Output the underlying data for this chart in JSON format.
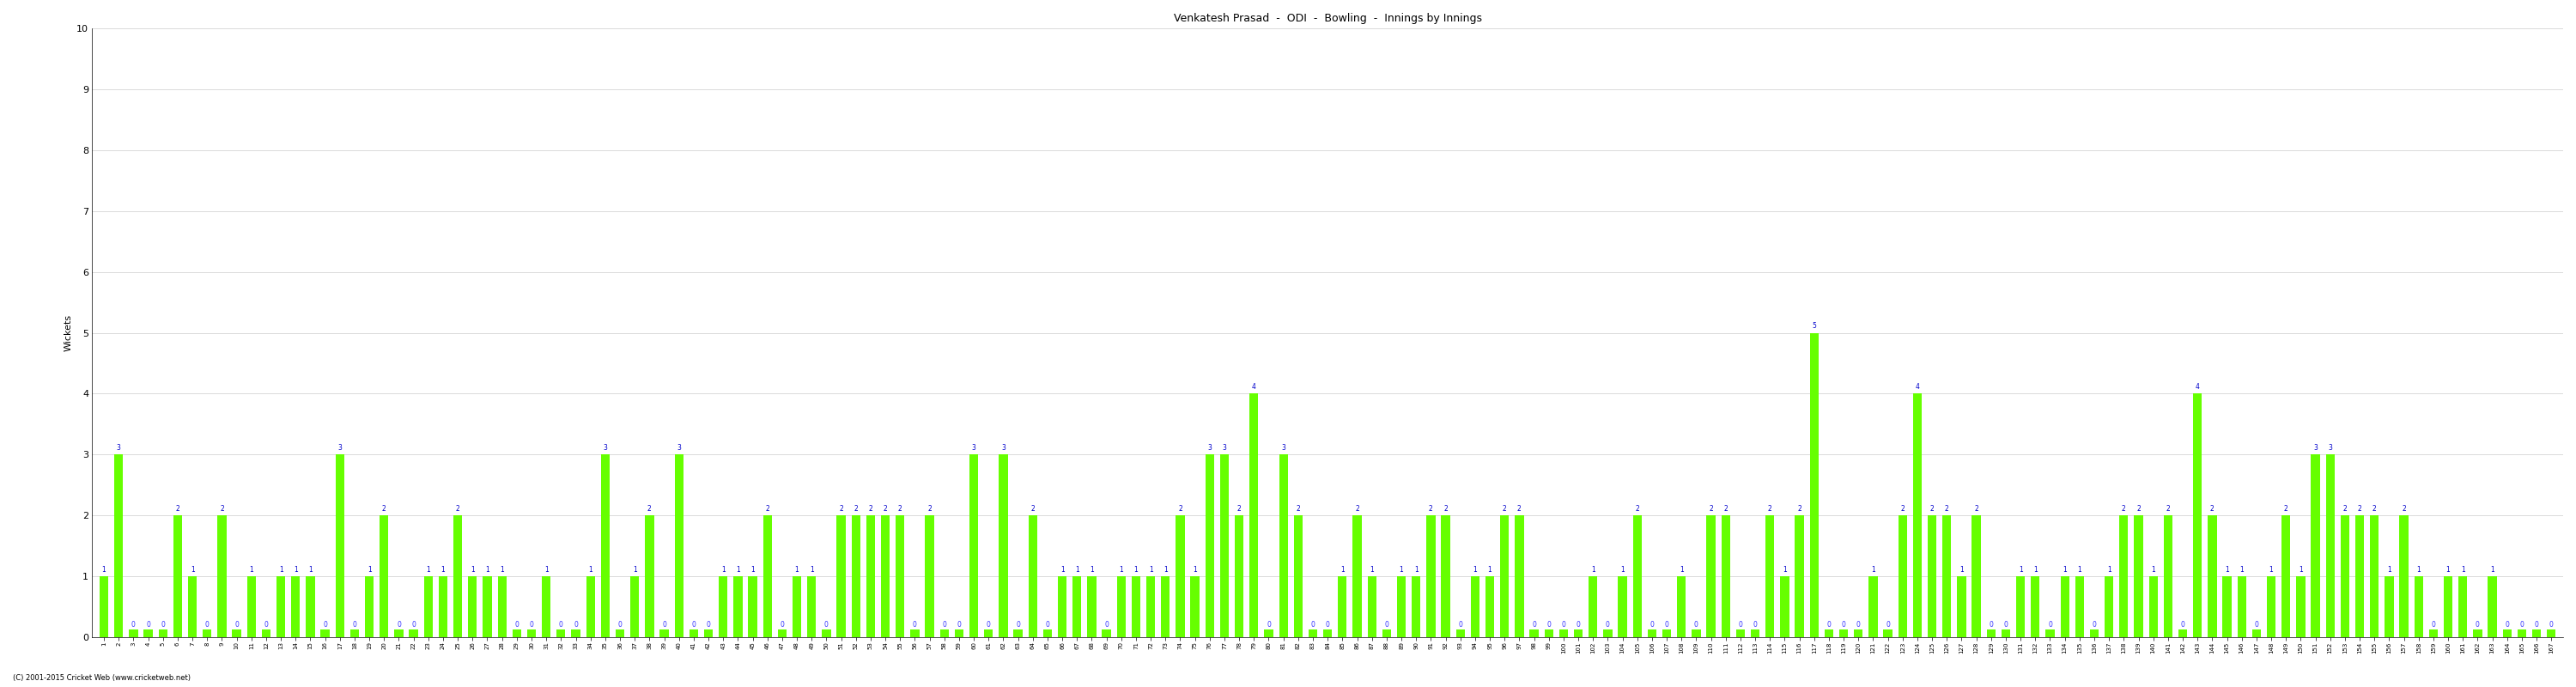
{
  "title": "Venkatesh Prasad  -  ODI  -  Bowling  -  Innings by Innings",
  "ylabel": "Wickets",
  "copyright": "(C) 2001-2015 Cricket Web (www.cricketweb.net)",
  "bar_color": "#66ff00",
  "zero_bar_color": "#66ff00",
  "text_color_nonzero": "#0000cc",
  "text_color_zero": "#3333ff",
  "ylim": [
    0,
    10
  ],
  "yticks": [
    0,
    1,
    2,
    3,
    4,
    5,
    6,
    7,
    8,
    9,
    10
  ],
  "wickets": [
    1,
    3,
    0,
    0,
    0,
    2,
    1,
    0,
    2,
    0,
    1,
    0,
    1,
    1,
    1,
    0,
    3,
    0,
    1,
    2,
    0,
    0,
    1,
    1,
    2,
    1,
    1,
    1,
    0,
    0,
    1,
    0,
    0,
    1,
    3,
    0,
    1,
    2,
    0,
    3,
    0,
    0,
    1,
    1,
    1,
    2,
    0,
    1,
    1,
    0,
    2,
    2,
    2,
    2,
    2,
    0,
    2,
    0,
    0,
    3,
    0,
    3,
    0,
    2,
    0,
    1,
    1,
    1,
    0,
    1,
    1,
    1,
    1,
    2,
    1,
    3,
    3,
    2,
    4,
    0,
    3,
    2,
    0,
    0,
    1,
    2,
    1,
    0,
    1,
    1,
    2,
    2,
    0,
    1,
    1,
    2,
    2,
    0,
    0,
    0,
    0,
    1,
    0,
    1,
    2,
    0,
    0,
    1,
    0,
    2,
    2,
    0,
    0,
    2,
    1,
    2,
    5,
    0,
    0,
    0,
    1,
    0,
    2,
    4,
    2,
    2,
    1,
    2,
    0,
    0,
    1,
    1,
    0,
    1,
    1,
    0,
    1,
    2,
    2,
    1,
    2,
    0,
    4,
    2,
    1,
    1,
    0,
    1,
    2,
    1,
    3,
    3,
    2,
    2,
    2,
    1,
    2,
    1,
    0,
    1,
    1,
    0,
    1,
    0,
    0,
    0,
    0
  ],
  "background_color": "#ffffff",
  "grid_color": "#cccccc",
  "spine_color": "#000000"
}
